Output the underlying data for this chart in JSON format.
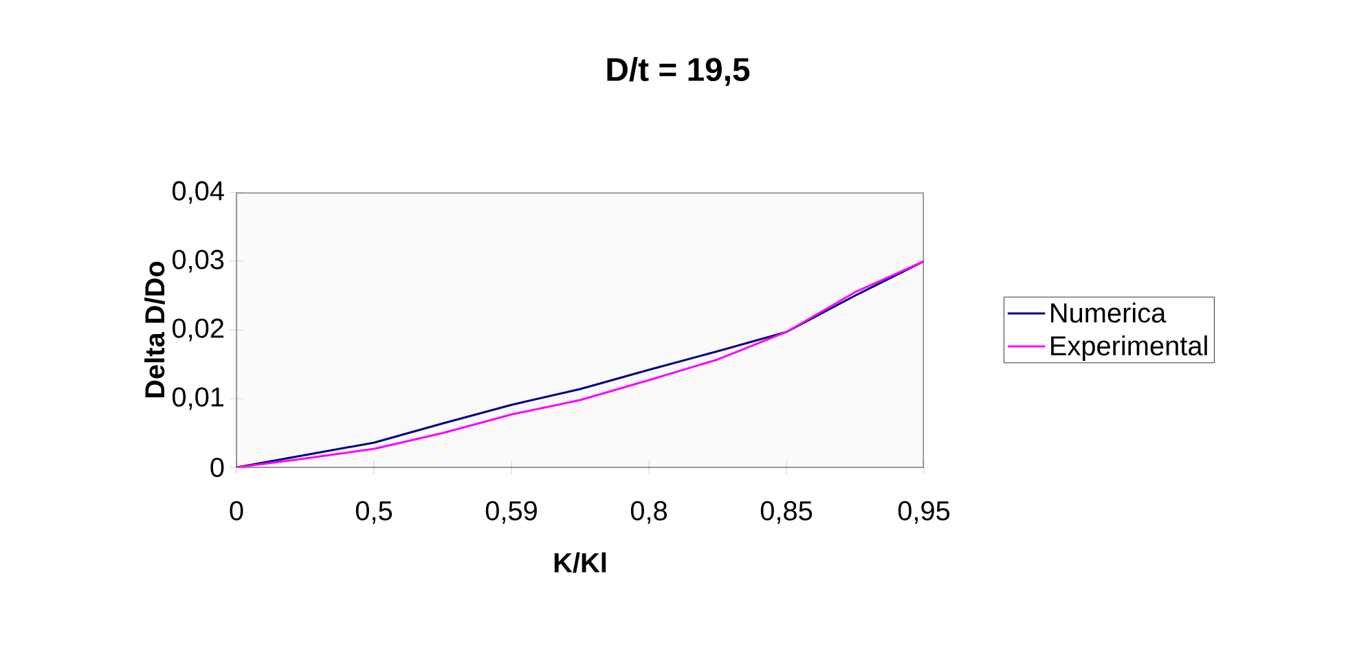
{
  "chart_data": {
    "type": "line",
    "title": "D/t = 19,5",
    "xlabel": "K/Kl",
    "ylabel": "Delta D/Do",
    "categories": [
      "0",
      null,
      "0,5",
      null,
      "0,59",
      null,
      "0,8",
      null,
      "0,85",
      null,
      "0,95"
    ],
    "series": [
      {
        "name": "Numerica",
        "color": "#000080",
        "values": [
          0,
          0.0018,
          0.0036,
          0.0064,
          0.0091,
          0.0114,
          0.0142,
          0.0169,
          0.0197,
          0.025,
          0.03
        ]
      },
      {
        "name": "Experimental",
        "color": "#ff00ff",
        "values": [
          0,
          0.0013,
          0.0027,
          0.005,
          0.0077,
          0.0098,
          0.0127,
          0.0157,
          0.0197,
          0.0255,
          0.03
        ]
      }
    ],
    "ylim": [
      0,
      0.04
    ],
    "yticks": [
      0,
      {
        "value": 0.01,
        "label": "0,01"
      },
      {
        "value": 0.02,
        "label": "0,02"
      },
      {
        "value": 0.03,
        "label": "0,03"
      },
      {
        "value": 0.04,
        "label": "0,04"
      }
    ],
    "legend": "right",
    "marker": "none",
    "line_style": "solid"
  }
}
